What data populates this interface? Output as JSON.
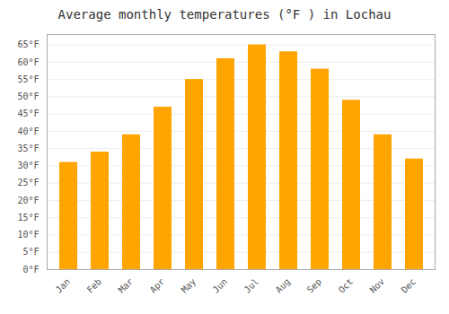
{
  "chart_data": {
    "type": "bar",
    "title": "Average monthly temperatures (°F ) in Lochau",
    "categories": [
      "Jan",
      "Feb",
      "Mar",
      "Apr",
      "May",
      "Jun",
      "Jul",
      "Aug",
      "Sep",
      "Oct",
      "Nov",
      "Dec"
    ],
    "values": [
      31,
      34,
      39,
      47,
      55,
      61,
      65,
      63,
      58,
      49,
      39,
      32
    ],
    "color": "#FFA500",
    "ylim": [
      0,
      68
    ],
    "yticks": [
      {
        "value": 0,
        "label": "0°F"
      },
      {
        "value": 5,
        "label": "5°F"
      },
      {
        "value": 10,
        "label": "10°F"
      },
      {
        "value": 15,
        "label": "15°F"
      },
      {
        "value": 20,
        "label": "20°F"
      },
      {
        "value": 25,
        "label": "25°F"
      },
      {
        "value": 30,
        "label": "30°F"
      },
      {
        "value": 35,
        "label": "35°F"
      },
      {
        "value": 40,
        "label": "40°F"
      },
      {
        "value": 45,
        "label": "45°F"
      },
      {
        "value": 50,
        "label": "50°F"
      },
      {
        "value": 55,
        "label": "55°F"
      },
      {
        "value": 60,
        "label": "60°F"
      },
      {
        "value": 65,
        "label": "65°F"
      }
    ],
    "grid": true
  }
}
